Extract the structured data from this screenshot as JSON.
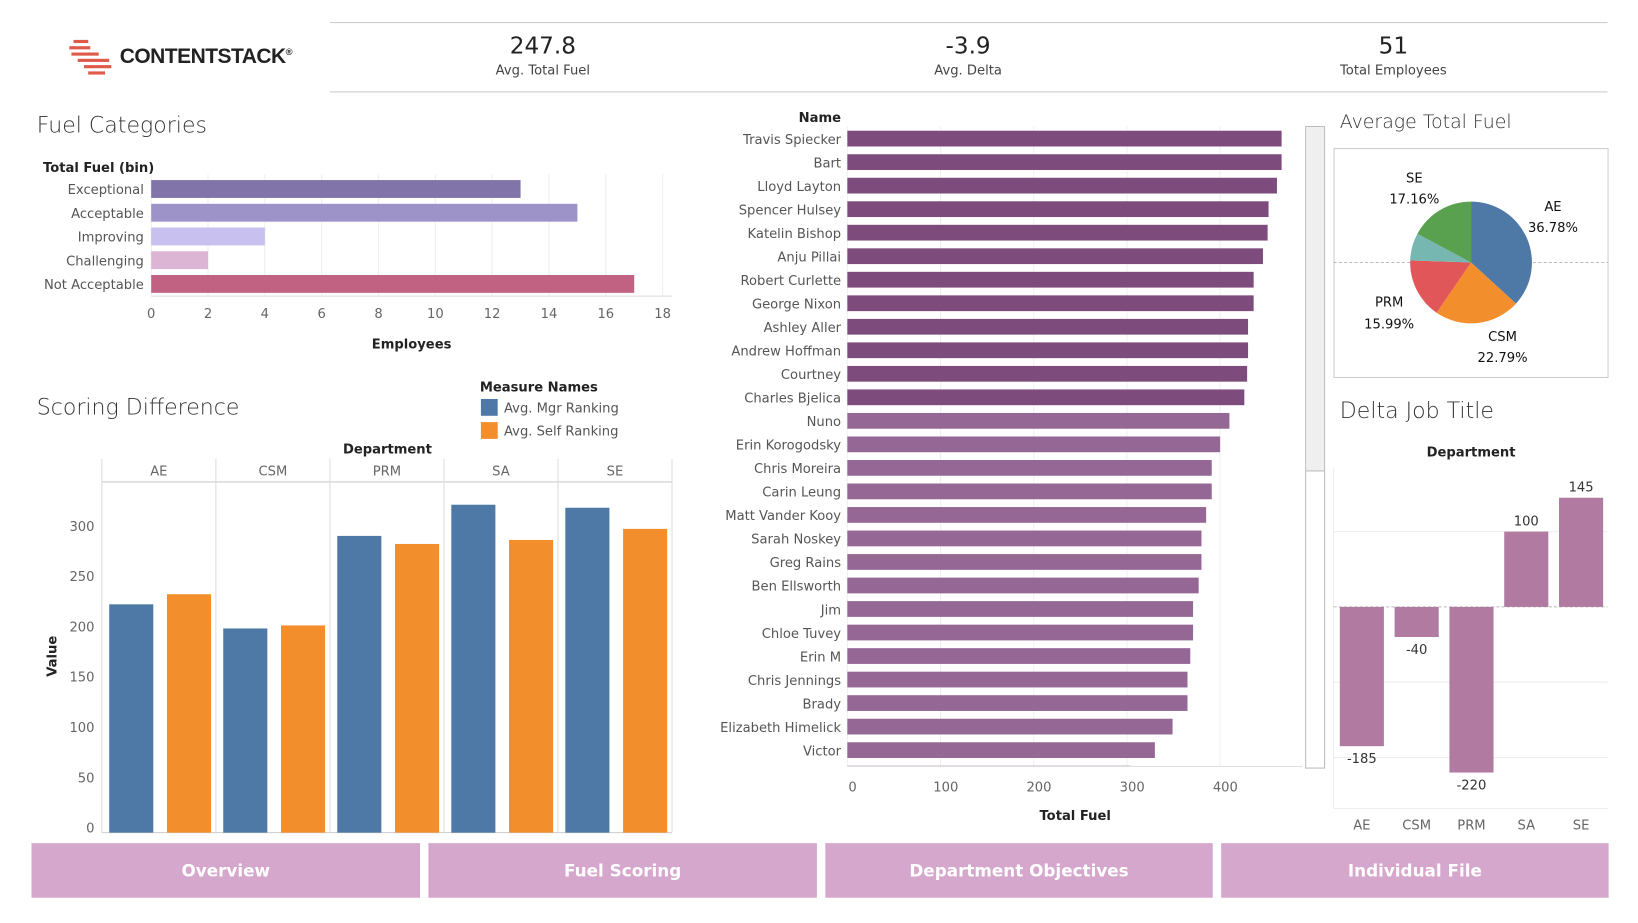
{
  "logo": {
    "text": "CONTENTSTACK",
    "registered": "®"
  },
  "kpis": [
    {
      "value": "247.8",
      "label": "Avg. Total Fuel"
    },
    {
      "value": "-3.9",
      "label": "Avg. Delta"
    },
    {
      "value": "51",
      "label": "Total Employees"
    }
  ],
  "fuel_categories": {
    "title": "Fuel Categories",
    "chart_data": {
      "type": "bar",
      "orientation": "horizontal",
      "row_header": "Total Fuel (bin)",
      "categories": [
        "Exceptional",
        "Acceptable",
        "Improving",
        "Challenging",
        "Not Acceptable"
      ],
      "values": [
        13,
        15,
        4,
        2,
        17
      ],
      "colors": [
        "#8174a8",
        "#9d93c9",
        "#c8c0ee",
        "#ddb5d4",
        "#c26283"
      ],
      "xlabel": "Employees",
      "xlim": [
        0,
        18
      ],
      "xticks": [
        "0",
        "2",
        "4",
        "6",
        "8",
        "10",
        "12",
        "14",
        "16",
        "18"
      ],
      "grid": true
    }
  },
  "scoring_difference": {
    "title": "Scoring Difference",
    "chart_data": {
      "type": "bar",
      "column_header": "Department",
      "categories": [
        "AE",
        "CSM",
        "PRM",
        "SA",
        "SE"
      ],
      "legend_title": "Measure Names",
      "series": [
        {
          "name": "Avg. Mgr Ranking",
          "color": "#4e79a7",
          "values": [
            227,
            203,
            295,
            326,
            323
          ]
        },
        {
          "name": "Avg. Self Ranking",
          "color": "#f28e2b",
          "values": [
            237,
            206,
            287,
            291,
            302
          ]
        }
      ],
      "ylabel": "Value",
      "ylim": [
        0,
        350
      ],
      "yticks": [
        "0",
        "50",
        "100",
        "150",
        "200",
        "250",
        "300"
      ],
      "legend": "top-right"
    }
  },
  "name_chart": {
    "chart_data": {
      "type": "bar",
      "orientation": "horizontal",
      "row_header": "Name",
      "color": "#8a5a8a",
      "categories": [
        "Travis Spiecker",
        "Bart",
        "Lloyd Layton",
        "Spencer Hulsey",
        "Katelin Bishop",
        "Anju Pillai",
        "Robert Curlette",
        "George Nixon",
        "Ashley Aller",
        "Andrew Hoffman",
        "Courtney",
        "Charles Bjelica",
        "Nuno",
        "Erin Korogodsky",
        "Chris Moreira",
        "Carin Leung",
        "Matt Vander Kooy",
        "Sarah Noskey",
        "Greg Rains",
        "Ben Ellsworth",
        "Jim",
        "Chloe Tuvey",
        "Erin M",
        "Chris Jennings",
        "Brady",
        "Elizabeth Himelick",
        "Victor",
        ""
      ],
      "values": [
        466,
        466,
        461,
        452,
        451,
        446,
        436,
        436,
        430,
        430,
        429,
        426,
        410,
        400,
        391,
        391,
        385,
        380,
        380,
        377,
        371,
        371,
        368,
        365,
        365,
        349,
        330,
        304
      ],
      "xlabel": "Total Fuel",
      "xlim": [
        0,
        470
      ],
      "xticks": [
        "0",
        "100",
        "200",
        "300",
        "400"
      ],
      "grid": true
    }
  },
  "average_total_fuel": {
    "title": "Average Total Fuel",
    "chart_data": {
      "type": "pie",
      "slices": [
        {
          "label": "AE",
          "value": 36.78,
          "text": "36.78%",
          "color": "#4e79a7"
        },
        {
          "label": "CSM",
          "value": 22.79,
          "text": "22.79%",
          "color": "#f28e2b"
        },
        {
          "label": "PRM",
          "value": 15.99,
          "text": "15.99%",
          "color": "#e15759"
        },
        {
          "label": "",
          "value": 7.28,
          "text": "",
          "color": "#76b7b2"
        },
        {
          "label": "SE",
          "value": 17.16,
          "text": "17.16%",
          "color": "#59a14f"
        }
      ]
    }
  },
  "delta_job_title": {
    "title": "Delta Job Title",
    "chart_data": {
      "type": "bar",
      "column_header": "Department",
      "categories": [
        "AE",
        "CSM",
        "PRM",
        "SA",
        "SE"
      ],
      "values": [
        -185,
        -40,
        -220,
        100,
        145
      ],
      "labels": [
        "-185",
        "-40",
        "-220",
        "100",
        "145"
      ],
      "color": "#b07aa1",
      "grid": true
    }
  },
  "nav": [
    {
      "label": "Overview"
    },
    {
      "label": "Fuel Scoring"
    },
    {
      "label": "Department Objectives"
    },
    {
      "label": "Individual File"
    }
  ]
}
